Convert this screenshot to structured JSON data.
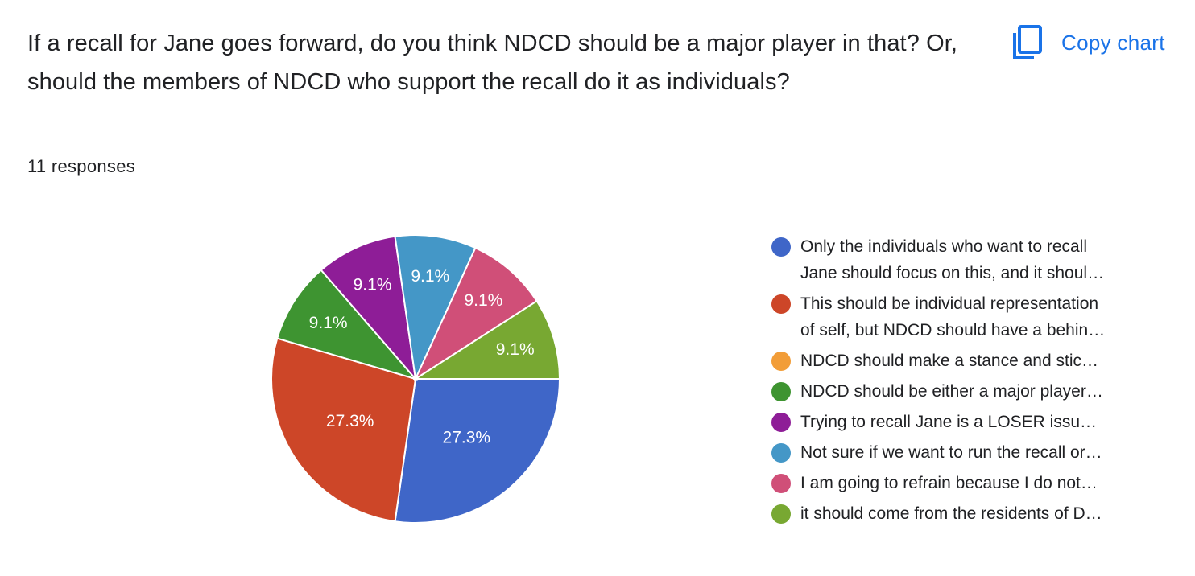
{
  "question": {
    "title": "If a recall for Jane goes forward, do you think NDCD should be a major player in that? Or, should the members of NDCD who support the recall do it as individuals?",
    "response_count": "11 responses"
  },
  "toolbar": {
    "copy_chart_label": "Copy chart",
    "copy_chart_icon": "copy-icon",
    "accent_color": "#1a73e8"
  },
  "chart_data": {
    "type": "pie",
    "total_responses": 11,
    "slices": [
      {
        "label_lines": [
          "Only the individuals who want to recall",
          "Jane should focus on this, and it shoul…"
        ],
        "count": 3,
        "percent": 27.3,
        "display": "27.3%",
        "color": "#3f66c8"
      },
      {
        "label_lines": [
          "This should be individual representation",
          "of self, but NDCD should have a behin…"
        ],
        "count": 3,
        "percent": 27.3,
        "display": "27.3%",
        "color": "#cd4628"
      },
      {
        "label_lines": [
          "NDCD should make a stance and stic…"
        ],
        "count": 0,
        "percent": 0,
        "display": "",
        "color": "#f29d38"
      },
      {
        "label_lines": [
          "NDCD should be either a major player…"
        ],
        "count": 1,
        "percent": 9.1,
        "display": "9.1%",
        "color": "#3e9431"
      },
      {
        "label_lines": [
          "Trying to recall Jane is a LOSER issu…"
        ],
        "count": 1,
        "percent": 9.1,
        "display": "9.1%",
        "color": "#8e1d97"
      },
      {
        "label_lines": [
          "Not sure if we want to run the recall or…"
        ],
        "count": 1,
        "percent": 9.1,
        "display": "9.1%",
        "color": "#4497c7"
      },
      {
        "label_lines": [
          "I am going to refrain because I do not…"
        ],
        "count": 1,
        "percent": 9.1,
        "display": "9.1%",
        "color": "#d04f78"
      },
      {
        "label_lines": [
          "it should come from the residents of D…"
        ],
        "count": 1,
        "percent": 9.1,
        "display": "9.1%",
        "color": "#78a832"
      }
    ],
    "legend_position": "right"
  }
}
